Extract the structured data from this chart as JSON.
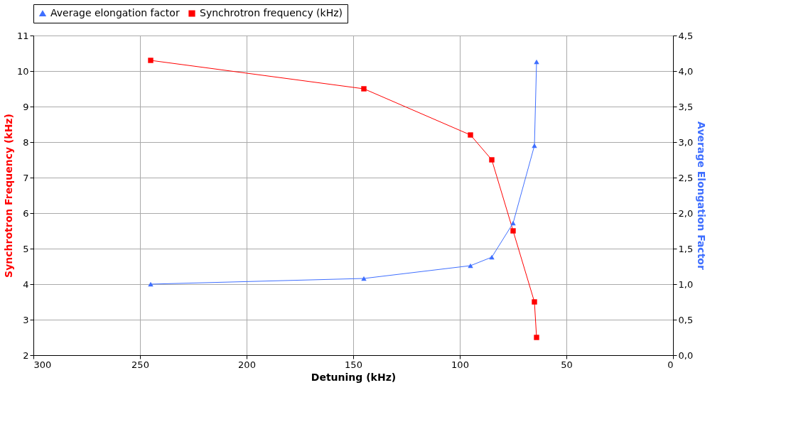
{
  "chart_data": {
    "type": "line",
    "xlabel": "Detuning (kHz)",
    "ylabel": "Synchrotron Frequency (kHz)",
    "y2label": "Average Elongation Factor",
    "x": [
      245,
      145,
      95,
      85,
      75,
      65,
      64
    ],
    "series": [
      {
        "name": "Average elongation factor",
        "color": "#3f6fff",
        "axis": "y2",
        "marker": "triangle",
        "values": [
          1.0,
          1.08,
          1.26,
          1.38,
          1.86,
          2.95,
          4.13
        ]
      },
      {
        "name": "Synchrotron frequency (kHz)",
        "color": "#ff0000",
        "marker": "square",
        "values": [
          10.3,
          9.5,
          8.2,
          7.5,
          5.5,
          3.5,
          2.5
        ]
      }
    ],
    "xlim": [
      300,
      0
    ],
    "xticks": [
      300,
      250,
      200,
      150,
      100,
      50,
      0
    ],
    "ylim": [
      2,
      11
    ],
    "yticks": [
      2,
      3,
      4,
      5,
      6,
      7,
      8,
      9,
      10,
      11
    ],
    "y2lim": [
      0,
      4.5
    ],
    "y2ticks": [
      {
        "value": 0,
        "label": "0,0"
      },
      {
        "value": 0.5,
        "label": "0,5"
      },
      {
        "value": 1,
        "label": "1,0"
      },
      {
        "value": 1.5,
        "label": "1,5"
      },
      {
        "value": 2,
        "label": "2,0"
      },
      {
        "value": 2.5,
        "label": "2,5"
      },
      {
        "value": 3,
        "label": "3,0"
      },
      {
        "value": 3.5,
        "label": "3,5"
      },
      {
        "value": 4,
        "label": "4,0"
      },
      {
        "value": 4.5,
        "label": "4,5"
      }
    ],
    "grid": true,
    "legend": "top",
    "line_style": "solid"
  }
}
